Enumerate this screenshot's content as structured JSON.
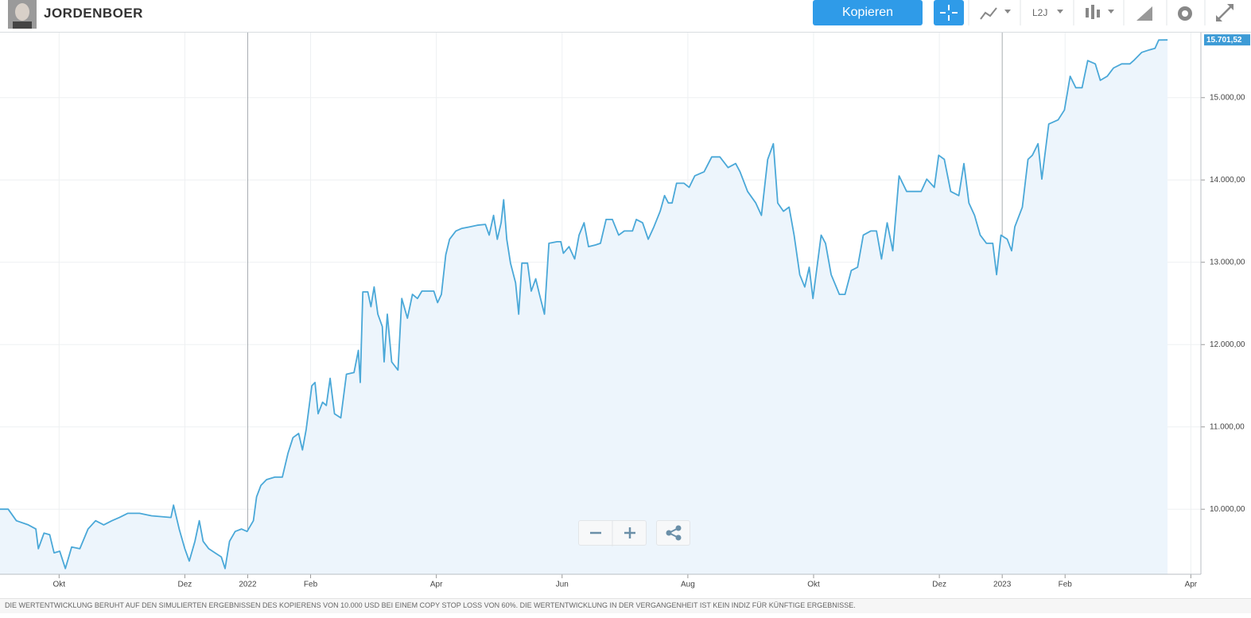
{
  "header": {
    "title": "JORDENBOER",
    "button": "Kopieren",
    "period": "L2J"
  },
  "footer": {
    "disclaimer": "DIE WERTENTWICKLUNG BERUHT AUF DEN SIMULIERTEN ERGEBNISSEN DES KOPIERENS VON 10.000 USD BEI EINEM COPY STOP LOSS VON 60%. DIE WERTENTWICKLUNG IN DER VERGANGENHEIT IST KEIN INDIZ FÜR KÜNFTIGE ERGEBNISSE."
  },
  "chart_data": {
    "type": "area",
    "color": "#4aa8d8",
    "fill": "#edf5fc",
    "grid": true,
    "xlim": [
      9.06,
      28.16
    ],
    "ylim": [
      9210,
      15790
    ],
    "xticks": [
      {
        "value": 10,
        "label": "Okt"
      },
      {
        "value": 12,
        "label": "Dez"
      },
      {
        "value": 13,
        "label": "2022"
      },
      {
        "value": 14,
        "label": "Feb"
      },
      {
        "value": 16,
        "label": "Apr"
      },
      {
        "value": 18,
        "label": "Jun"
      },
      {
        "value": 20,
        "label": "Aug"
      },
      {
        "value": 22,
        "label": "Okt"
      },
      {
        "value": 24,
        "label": "Dez"
      },
      {
        "value": 25,
        "label": "2023"
      },
      {
        "value": 26,
        "label": "Feb"
      },
      {
        "value": 28,
        "label": "Apr"
      }
    ],
    "yticks": [
      {
        "value": 10000,
        "label": "10.000,00"
      },
      {
        "value": 11000,
        "label": "11.000,00"
      },
      {
        "value": 12000,
        "label": "12.000,00"
      },
      {
        "value": 13000,
        "label": "13.000,00"
      },
      {
        "value": 14000,
        "label": "14.000,00"
      },
      {
        "value": 15000,
        "label": "15.000,00"
      }
    ],
    "current_value": {
      "value": 15701.52,
      "label": "15.701,52"
    },
    "x": [
      9.06,
      9.19,
      9.32,
      9.51,
      9.63,
      9.67,
      9.76,
      9.85,
      9.92,
      10.01,
      10.1,
      10.2,
      10.33,
      10.46,
      10.58,
      10.71,
      10.84,
      10.96,
      11.09,
      11.28,
      11.47,
      11.78,
      11.82,
      11.91,
      12.0,
      12.07,
      12.16,
      12.23,
      12.29,
      12.38,
      12.48,
      12.58,
      12.64,
      12.71,
      12.8,
      12.9,
      12.99,
      13.09,
      13.14,
      13.21,
      13.3,
      13.43,
      13.55,
      13.64,
      13.72,
      13.81,
      13.87,
      13.93,
      14.02,
      14.07,
      14.12,
      14.19,
      14.25,
      14.31,
      14.38,
      14.48,
      14.57,
      14.69,
      14.76,
      14.79,
      14.83,
      14.91,
      14.96,
      15.01,
      15.07,
      15.14,
      15.17,
      15.22,
      15.29,
      15.39,
      15.45,
      15.54,
      15.62,
      15.7,
      15.77,
      15.96,
      16.02,
      16.08,
      16.15,
      16.21,
      16.31,
      16.4,
      16.53,
      16.65,
      16.78,
      16.84,
      16.91,
      16.97,
      17.03,
      17.07,
      17.12,
      17.18,
      17.26,
      17.31,
      17.36,
      17.45,
      17.51,
      17.58,
      17.64,
      17.72,
      17.79,
      17.92,
      17.98,
      18.02,
      18.11,
      18.2,
      18.27,
      18.35,
      18.42,
      18.53,
      18.61,
      18.7,
      18.8,
      18.9,
      18.99,
      19.12,
      19.18,
      19.28,
      19.37,
      19.46,
      19.56,
      19.63,
      19.69,
      19.75,
      19.82,
      19.94,
      20.02,
      20.11,
      20.26,
      20.38,
      20.51,
      20.64,
      20.76,
      20.83,
      20.95,
      21.08,
      21.17,
      21.27,
      21.36,
      21.43,
      21.52,
      21.61,
      21.69,
      21.78,
      21.86,
      21.93,
      21.99,
      22.12,
      22.19,
      22.28,
      22.41,
      22.5,
      22.6,
      22.7,
      22.79,
      22.91,
      23.0,
      23.08,
      23.17,
      23.26,
      23.36,
      23.48,
      23.58,
      23.71,
      23.8,
      23.92,
      23.99,
      24.08,
      24.18,
      24.31,
      24.39,
      24.47,
      24.56,
      24.65,
      24.75,
      24.85,
      24.91,
      24.98,
      25.08,
      25.15,
      25.2,
      25.32,
      25.41,
      25.48,
      25.57,
      25.63,
      25.74,
      25.89,
      25.99,
      26.08,
      26.17,
      26.27,
      26.36,
      26.48,
      26.56,
      26.67,
      26.77,
      26.9,
      27.03,
      27.09,
      27.22,
      27.34,
      27.43,
      27.49,
      27.63
    ],
    "values": [
      10000,
      10000,
      9860,
      9810,
      9760,
      9520,
      9710,
      9690,
      9470,
      9490,
      9280,
      9540,
      9520,
      9760,
      9860,
      9810,
      9860,
      9900,
      9950,
      9950,
      9920,
      9900,
      10050,
      9760,
      9520,
      9370,
      9610,
      9860,
      9610,
      9520,
      9470,
      9420,
      9280,
      9610,
      9730,
      9760,
      9730,
      9860,
      10150,
      10290,
      10360,
      10390,
      10390,
      10680,
      10870,
      10920,
      10720,
      10970,
      11500,
      11540,
      11160,
      11300,
      11260,
      11590,
      11160,
      11110,
      11640,
      11660,
      11930,
      11540,
      12640,
      12640,
      12460,
      12700,
      12370,
      12220,
      11790,
      12370,
      11790,
      11690,
      12560,
      12320,
      12610,
      12560,
      12650,
      12650,
      12510,
      12610,
      13090,
      13280,
      13380,
      13410,
      13430,
      13450,
      13460,
      13330,
      13570,
      13280,
      13480,
      13760,
      13280,
      12990,
      12750,
      12370,
      12990,
      12990,
      12650,
      12800,
      12610,
      12370,
      13230,
      13250,
      13250,
      13110,
      13190,
      13040,
      13330,
      13480,
      13190,
      13210,
      13230,
      13520,
      13520,
      13330,
      13380,
      13380,
      13520,
      13480,
      13280,
      13430,
      13620,
      13810,
      13720,
      13720,
      13960,
      13960,
      13910,
      14050,
      14100,
      14280,
      14280,
      14150,
      14200,
      14100,
      13860,
      13720,
      13570,
      14250,
      14440,
      13720,
      13620,
      13670,
      13330,
      12850,
      12700,
      12940,
      12560,
      13330,
      13230,
      12850,
      12610,
      12610,
      12900,
      12940,
      13330,
      13380,
      13380,
      13040,
      13480,
      13140,
      14050,
      13860,
      13860,
      13860,
      14010,
      13910,
      14300,
      14250,
      13860,
      13810,
      14200,
      13720,
      13570,
      13330,
      13230,
      13230,
      12850,
      13330,
      13280,
      13140,
      13430,
      13670,
      14250,
      14300,
      14440,
      14010,
      14680,
      14730,
      14850,
      15260,
      15120,
      15120,
      15450,
      15410,
      15210,
      15260,
      15360,
      15410,
      15410,
      15450,
      15550,
      15580,
      15600,
      15700,
      15701.52
    ]
  }
}
